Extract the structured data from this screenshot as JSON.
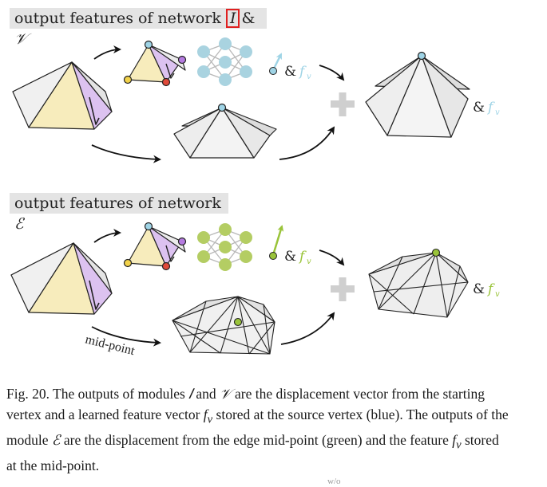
{
  "figure": {
    "top_label_prefix": "output features of network ",
    "top_sym_I": "𝐼",
    "top_amp": "&",
    "top_sym_V": "𝒱",
    "bottom_label_prefix": "output features of network ",
    "bottom_sym_E": "ℰ",
    "feature_label_amp": "&",
    "feature_label_f": "f",
    "feature_label_sub": "v",
    "midpoint_label": "mid-point",
    "colors": {
      "blue_vertex": "#9fd4e6",
      "green_vertex": "#9ac43a",
      "red_vertex": "#e04a3a",
      "yellow_vertex": "#f2d24a",
      "purple_vertex": "#b57be0",
      "yellow_face": "#f7ecbc",
      "purple_face": "#dcc2f0",
      "nn_blue": "#a9d3e0",
      "nn_green": "#b4cd63",
      "plus": "#cfcfcf"
    }
  },
  "caption": {
    "part1": "Fig. 20.  The outputs of modules ",
    "sym_I": "𝐼",
    "part2": " and ",
    "sym_V": "𝒱",
    "part3": " are the displacement vector from the starting vertex and a learned feature vector ",
    "f": "f",
    "sub": "v",
    "part4": " stored at the source vertex (blue). The outputs of the module ",
    "sym_E": "ℰ",
    "part5": " are the displacement from the edge mid-point (green) and the feature ",
    "f2": "f",
    "sub2": "v",
    "part6": " stored at the mid-point."
  },
  "footnote_ghost": "w/o"
}
